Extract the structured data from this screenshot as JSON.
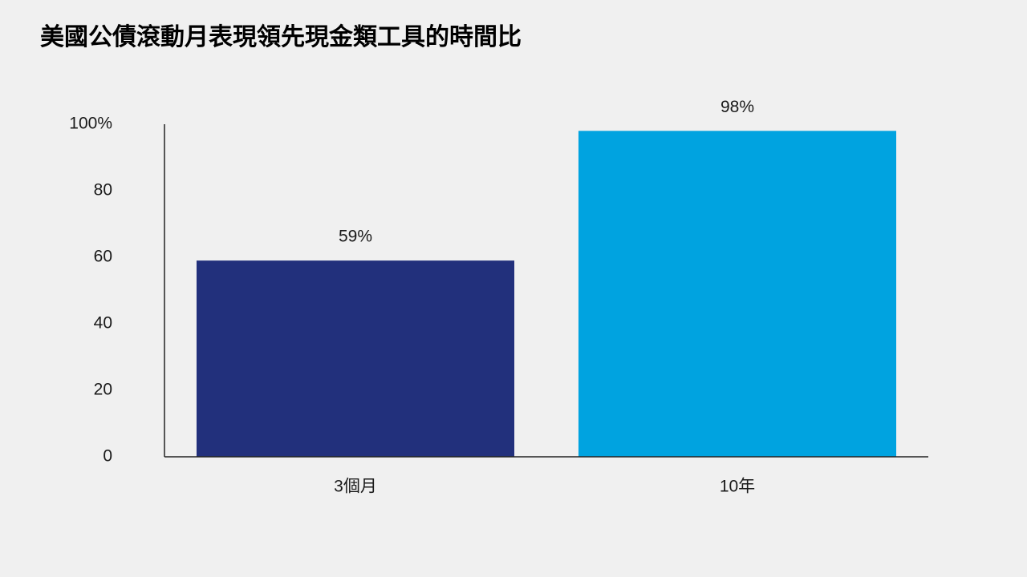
{
  "chart_data": {
    "type": "bar",
    "title": "美國公債滾動月表現領先現金類工具的時間比",
    "categories": [
      "3個月",
      "10年"
    ],
    "values": [
      59,
      98
    ],
    "value_labels": [
      "59%",
      "98%"
    ],
    "colors": [
      "#22307c",
      "#00a3e0"
    ],
    "ylim": [
      0,
      100
    ],
    "yticks": [
      0,
      20,
      40,
      60,
      80,
      {
        "value": 100,
        "label": "100%"
      }
    ],
    "grid": false
  }
}
